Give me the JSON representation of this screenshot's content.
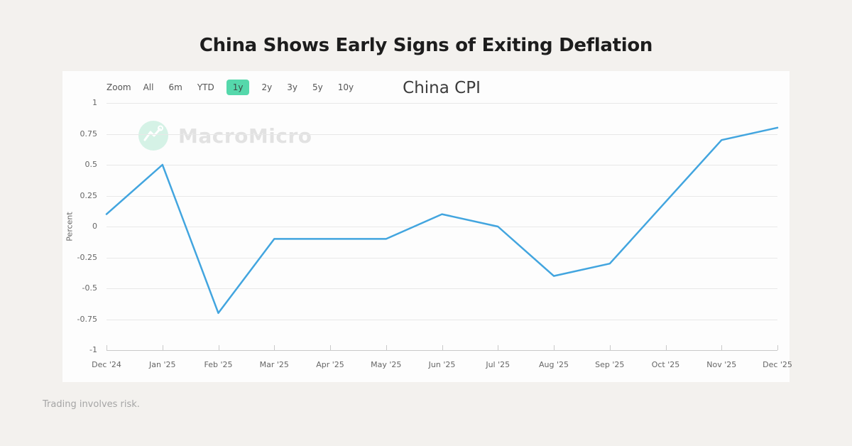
{
  "page": {
    "title": "China Shows Early Signs of Exiting Deflation",
    "footer": "Trading involves risk."
  },
  "toolbar": {
    "zoom_label": "Zoom",
    "buttons": [
      "All",
      "6m",
      "YTD",
      "1y",
      "2y",
      "3y",
      "5y",
      "10y"
    ],
    "selected": "1y"
  },
  "watermark": {
    "brand": "MacroMicro",
    "logo_icon": "macromicro-mountain-logo"
  },
  "chart_data": {
    "type": "line",
    "title": "China CPI",
    "xlabel": "",
    "ylabel": "Percent",
    "ylim": [
      -1,
      1
    ],
    "yticks": [
      1,
      0.75,
      0.5,
      0.25,
      0,
      -0.25,
      -0.5,
      -0.75,
      -1
    ],
    "categories": [
      "Dec '24",
      "Jan '25",
      "Feb '25",
      "Mar '25",
      "Apr '25",
      "May '25",
      "Jun '25",
      "Jul '25",
      "Aug '25",
      "Sep '25",
      "Oct '25",
      "Nov '25",
      "Dec '25"
    ],
    "values": [
      0.1,
      0.5,
      -0.7,
      -0.1,
      -0.1,
      -0.1,
      0.1,
      0.0,
      -0.4,
      -0.3,
      0.2,
      0.7,
      0.8
    ],
    "grid": true,
    "legend": false,
    "line_color": "#42a5df"
  },
  "colors": {
    "page_bg": "#f3f1ee",
    "card_bg": "#fdfdfd",
    "accent_green": "#55d8ab",
    "line_blue": "#42a5df",
    "gridline": "#e8e8e8",
    "axis_label": "#666666",
    "watermark_text": "#e2e2e2",
    "logo_mint": "#d5f2e6"
  }
}
